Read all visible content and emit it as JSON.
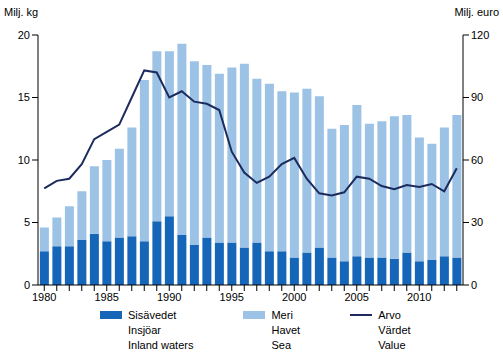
{
  "chart_data": {
    "type": "bar",
    "stacked": true,
    "grid": false,
    "legend": "bottom",
    "y_label": "Milj. kg",
    "y2_label": "Milj. euro",
    "categories": [
      "1980",
      null,
      null,
      null,
      null,
      "1985",
      null,
      null,
      null,
      null,
      "1990",
      null,
      null,
      null,
      null,
      "1995",
      null,
      null,
      null,
      null,
      "2000",
      null,
      null,
      null,
      null,
      "2005",
      null,
      null,
      null,
      null,
      "2010",
      null,
      null,
      null
    ],
    "ylim": [
      0,
      20
    ],
    "yticks": [
      0,
      5,
      10,
      15,
      20
    ],
    "y2lim": [
      0,
      120
    ],
    "y2ticks": [
      0,
      30,
      60,
      90,
      120
    ],
    "series": [
      {
        "name": "Sisävedet\nInsjöar\nInland waters",
        "type": "bar",
        "color": "#1565b8",
        "values": [
          2.7,
          3.1,
          3.1,
          3.6,
          4.1,
          3.5,
          3.8,
          3.9,
          3.5,
          5.1,
          5.5,
          4.0,
          3.2,
          3.8,
          3.4,
          3.4,
          3.0,
          3.4,
          2.7,
          2.7,
          2.2,
          2.6,
          3.0,
          2.2,
          1.9,
          2.3,
          2.2,
          2.2,
          2.1,
          2.6,
          1.9,
          2.0,
          2.3,
          2.2
        ]
      },
      {
        "name": "Meri\nHavet\nSea",
        "type": "bar",
        "color": "#9cc3e6",
        "values": [
          1.9,
          2.3,
          3.2,
          3.9,
          5.4,
          6.5,
          7.1,
          8.7,
          12.9,
          13.6,
          13.2,
          15.3,
          14.7,
          13.8,
          13.5,
          14.0,
          14.7,
          13.1,
          13.4,
          12.8,
          13.2,
          13.1,
          12.1,
          10.3,
          10.9,
          12.1,
          10.7,
          10.9,
          11.4,
          11.0,
          9.9,
          9.3,
          10.3,
          11.4
        ]
      },
      {
        "name": "Arvo\nVärdet\nValue",
        "type": "line",
        "axis": "y2",
        "color": "#1c2a5e",
        "values": [
          46.4,
          50,
          51,
          58,
          70,
          73.5,
          77,
          90,
          103,
          102,
          90,
          93,
          88,
          87,
          84,
          64,
          54,
          49,
          52,
          58,
          61,
          51,
          44,
          43,
          44.5,
          52,
          51,
          47.5,
          46,
          48,
          47,
          48.5,
          45,
          56
        ]
      }
    ]
  }
}
